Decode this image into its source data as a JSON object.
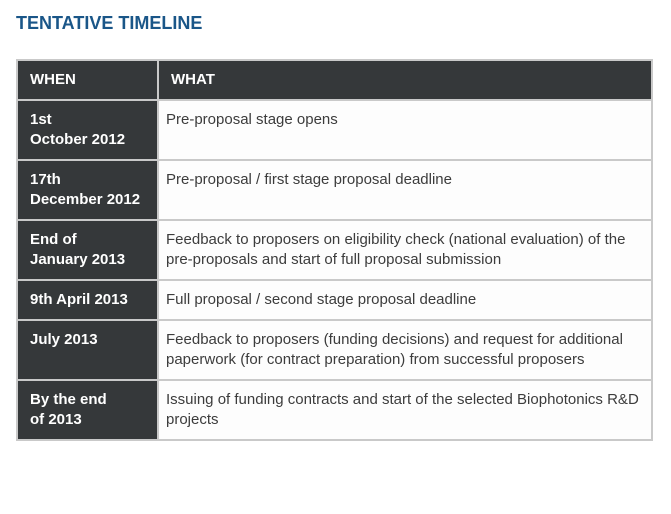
{
  "title": "TENTATIVE TIMELINE",
  "colors": {
    "title_text": "#1a5688",
    "dark_cell_background": "#35383a",
    "dark_cell_text": "#ffffff",
    "light_cell_background": "#fdfdfd",
    "light_cell_text": "#3c3c3c",
    "cell_border": "#c9c9c9",
    "page_background": "#ffffff"
  },
  "table": {
    "header": {
      "when": "WHEN",
      "what": "WHAT"
    },
    "rows": [
      {
        "when": "1st\nOctober 2012",
        "what": "Pre-proposal stage opens"
      },
      {
        "when": "17th\nDecember 2012",
        "what": "Pre-proposal / first stage proposal deadline"
      },
      {
        "when": "End of\nJanuary 2013",
        "what": "Feedback to proposers on eligibility check (national evaluation) of the pre-proposals and start of full proposal submission"
      },
      {
        "when": "9th April 2013",
        "what": "Full proposal / second stage proposal deadline"
      },
      {
        "when": "July 2013",
        "what": "Feedback to proposers (funding decisions) and request for additional paperwork (for contract preparation) from successful proposers"
      },
      {
        "when": "By the end\nof 2013",
        "what": "Issuing of funding contracts and start of the selected Biophotonics R&D projects"
      }
    ]
  }
}
